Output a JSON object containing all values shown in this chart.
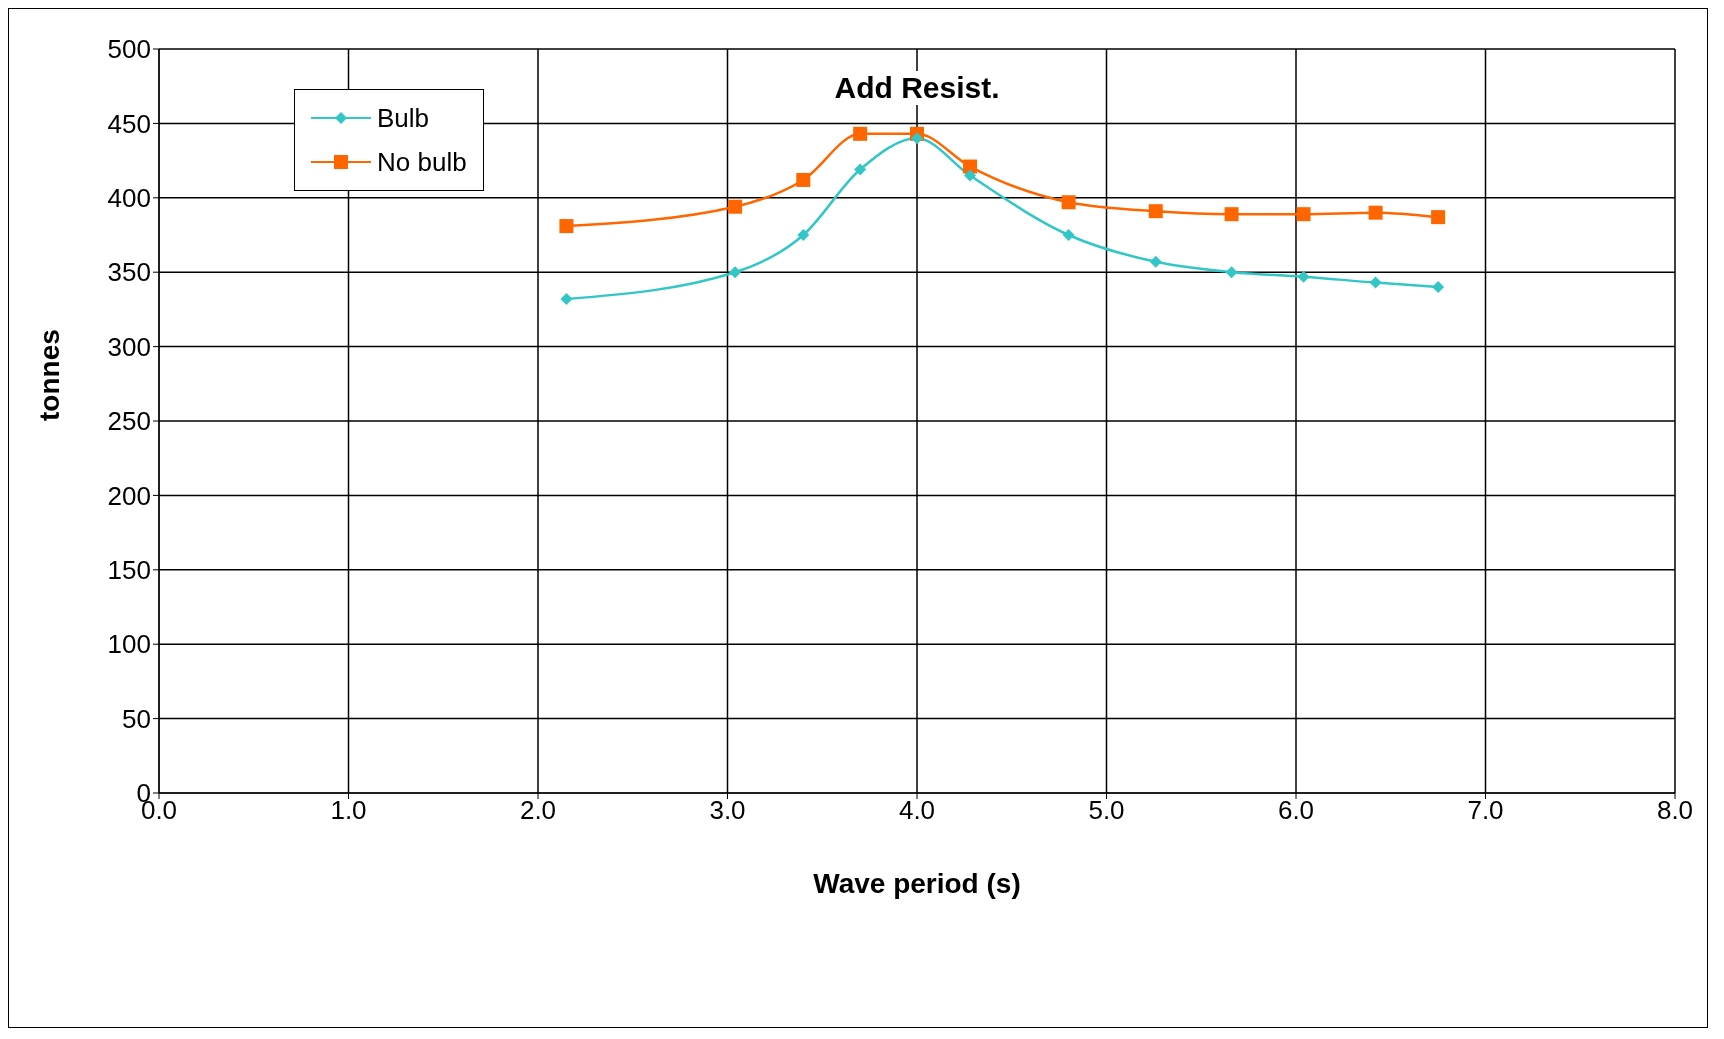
{
  "chart_data": {
    "type": "line",
    "title": "Add Resist.",
    "xlabel": "Wave period (s)",
    "ylabel": "tonnes",
    "x": [
      2.15,
      3.04,
      3.4,
      3.7,
      4.0,
      4.28,
      4.8,
      5.26,
      5.66,
      6.04,
      6.42,
      6.75
    ],
    "series": [
      {
        "name": "Bulb",
        "color": "#33c6c6",
        "marker": "diamond",
        "values": [
          332,
          350,
          375,
          419,
          440,
          415,
          375,
          357,
          350,
          347,
          343,
          340
        ]
      },
      {
        "name": "No bulb",
        "color": "#ff6600",
        "marker": "square",
        "values": [
          381,
          394,
          412,
          443,
          443,
          421,
          397,
          391,
          389,
          389,
          390,
          387
        ]
      }
    ],
    "xlim": [
      0,
      8
    ],
    "xticks": [
      {
        "value": 0,
        "label": "0.0"
      },
      {
        "value": 1,
        "label": "1.0"
      },
      {
        "value": 2,
        "label": "2.0"
      },
      {
        "value": 3,
        "label": "3.0"
      },
      {
        "value": 4,
        "label": "4.0"
      },
      {
        "value": 5,
        "label": "5.0"
      },
      {
        "value": 6,
        "label": "6.0"
      },
      {
        "value": 7,
        "label": "7.0"
      },
      {
        "value": 8,
        "label": "8.0"
      }
    ],
    "ylim": [
      0,
      500
    ],
    "yticks": [
      0,
      50,
      100,
      150,
      200,
      250,
      300,
      350,
      400,
      450,
      500
    ],
    "grid": true,
    "legend": "top left",
    "line_style": "solid"
  }
}
